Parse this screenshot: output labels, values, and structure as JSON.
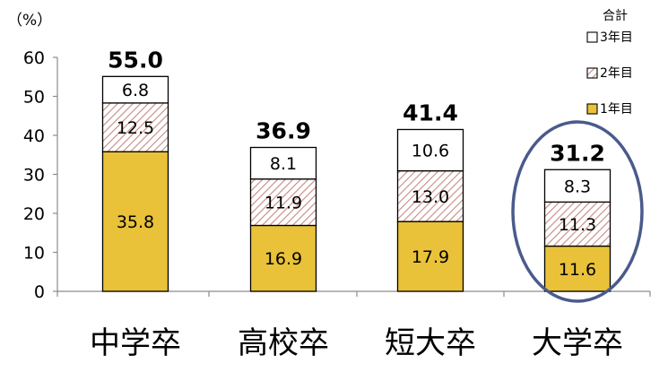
{
  "chart_data": {
    "type": "bar",
    "stacked": true,
    "unit_label": "（%）",
    "categories": [
      "中学卒",
      "高校卒",
      "短大卒",
      "大学卒"
    ],
    "series": [
      {
        "name": "1年目",
        "values": [
          35.8,
          16.9,
          17.9,
          11.6
        ],
        "fill": "#E9C23A",
        "pattern": "solid"
      },
      {
        "name": "2年目",
        "values": [
          12.5,
          11.9,
          13.0,
          11.3
        ],
        "fill": "#ffffff",
        "pattern": "diagonal-hatch",
        "hatch_color": "#C58A86"
      },
      {
        "name": "3年目",
        "values": [
          6.8,
          8.1,
          10.6,
          8.3
        ],
        "fill": "#ffffff",
        "pattern": "solid"
      }
    ],
    "totals": [
      55.0,
      36.9,
      41.4,
      31.2
    ],
    "total_labels": [
      "55.0",
      "36.9",
      "41.4",
      "31.2"
    ],
    "series_labels": [
      [
        "35.8",
        "16.9",
        "17.9",
        "11.6"
      ],
      [
        "12.5",
        "11.9",
        "13.0",
        "11.3"
      ],
      [
        "6.8",
        "8.1",
        "10.6",
        "8.3"
      ]
    ],
    "legend_title": "合計",
    "legend_order": [
      "3年目",
      "2年目",
      "1年目"
    ],
    "legend_position": "top-right",
    "highlighted_category": "大学卒",
    "highlight_color": "#4A5A8C",
    "y_ticks": [
      0,
      10,
      20,
      30,
      40,
      50,
      60
    ],
    "ylim": [
      0,
      60
    ],
    "grid": false
  }
}
